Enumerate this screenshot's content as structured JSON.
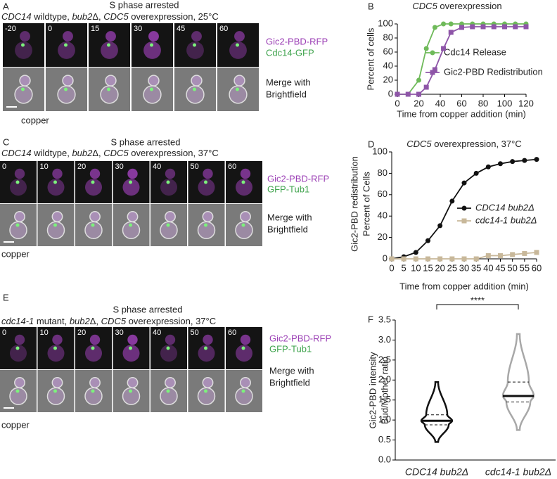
{
  "panels": [
    {
      "letter": "A",
      "title": "S phase arrested",
      "subtitle": [
        {
          "text": "CDC14",
          "italic": true
        },
        {
          "text": " wildtype, "
        },
        {
          "text": "bub2",
          "italic": true
        },
        {
          "text": "Δ, "
        },
        {
          "text": "CDC5",
          "italic": true
        },
        {
          "text": " overexpression, 25°C"
        }
      ],
      "times": [
        -20,
        0,
        15,
        30,
        45,
        60
      ],
      "channels": [
        {
          "text": "Gic2-PBD-RFP",
          "color": "#9b3fb5"
        },
        {
          "text": "Cdc14-GFP",
          "color": "#3fa34d"
        }
      ],
      "merge": [
        "Merge with",
        "Brightfield"
      ],
      "treatment": "copper"
    },
    {
      "letter": "C",
      "title": "S phase arrested",
      "subtitle": [
        {
          "text": "CDC14",
          "italic": true
        },
        {
          "text": " wildtype, "
        },
        {
          "text": "bub2",
          "italic": true
        },
        {
          "text": "Δ, "
        },
        {
          "text": "CDC5",
          "italic": true
        },
        {
          "text": " overexpression, 37°C"
        }
      ],
      "times": [
        0,
        10,
        20,
        30,
        40,
        50,
        60
      ],
      "channels": [
        {
          "text": "Gic2-PBD-RFP",
          "color": "#9b3fb5"
        },
        {
          "text": "GFP-Tub1",
          "color": "#3fa34d"
        }
      ],
      "merge": [
        "Merge with",
        "Brightfield"
      ],
      "treatment": "copper"
    },
    {
      "letter": "E",
      "title": "S phase arrested",
      "subtitle": [
        {
          "text": "cdc14-1",
          "italic": true
        },
        {
          "text": " mutant, "
        },
        {
          "text": "bub2",
          "italic": true
        },
        {
          "text": "Δ, "
        },
        {
          "text": "CDC5",
          "italic": true
        },
        {
          "text": " overexpression, 37°C"
        }
      ],
      "times": [
        0,
        10,
        20,
        30,
        40,
        50,
        60
      ],
      "channels": [
        {
          "text": "Gic2-PBD-RFP",
          "color": "#9b3fb5"
        },
        {
          "text": "GFP-Tub1",
          "color": "#3fa34d"
        }
      ],
      "merge": [
        "Merge with",
        "Brightfield"
      ],
      "treatment": "copper"
    }
  ],
  "chart_data": [
    {
      "type": "line",
      "panel_label": "B",
      "title": [
        {
          "text": "CDC5",
          "italic": true
        },
        {
          "text": " overexpression"
        }
      ],
      "x_label": "Time from copper addition (min)",
      "y_label": [
        "Percent of cells"
      ],
      "x": [
        0,
        10,
        20,
        27,
        35,
        43,
        50,
        60,
        70,
        80,
        90,
        100,
        110,
        120
      ],
      "xlim": [
        0,
        120
      ],
      "xticks": [
        0,
        20,
        40,
        60,
        80,
        100,
        120
      ],
      "ylim": [
        0,
        100
      ],
      "yticks": [
        0,
        20,
        40,
        60,
        80,
        100
      ],
      "series": [
        {
          "name": "Cdc14 Release",
          "color": "#6fba5a",
          "marker": "circle",
          "values": [
            0,
            0,
            20,
            65,
            95,
            100,
            100,
            100,
            100,
            100,
            100,
            100,
            100,
            100
          ]
        },
        {
          "name": "Gic2-PBD Redistribution",
          "color": "#8e55a8",
          "marker": "square",
          "values": [
            0,
            0,
            0,
            10,
            35,
            65,
            88,
            95,
            96,
            96,
            96,
            96,
            96,
            96
          ]
        }
      ]
    },
    {
      "type": "line",
      "panel_label": "D",
      "title": [
        {
          "text": "CDC5",
          "italic": true
        },
        {
          "text": " overexpression, 37°C"
        }
      ],
      "x_label": "Time from copper addition (min)",
      "y_label": [
        "Gic2-PBD redistribution",
        "Percent of Cells"
      ],
      "x": [
        0,
        5,
        10,
        15,
        20,
        25,
        30,
        35,
        40,
        45,
        50,
        55,
        60
      ],
      "xlim": [
        0,
        60
      ],
      "xticks": [
        0,
        5,
        10,
        15,
        20,
        25,
        30,
        35,
        40,
        45,
        50,
        55,
        60
      ],
      "ylim": [
        0,
        100
      ],
      "yticks": [
        0,
        20,
        40,
        60,
        80,
        100
      ],
      "series": [
        {
          "name": "CDC14 bub2Δ",
          "color": "#111111",
          "marker": "circle",
          "values": [
            0,
            2,
            6,
            17,
            31,
            54,
            71,
            80,
            86,
            89,
            91,
            92,
            93
          ]
        },
        {
          "name": "cdc14-1 bub2Δ",
          "color": "#c8b89a",
          "marker": "square",
          "values": [
            0,
            0,
            0,
            0,
            0,
            0,
            0,
            0,
            3,
            3,
            4,
            5,
            6
          ]
        }
      ]
    },
    {
      "type": "violin",
      "panel_label": "F",
      "y_label": [
        "Gic2-PBD intensity",
        "Bud/Mother ratio"
      ],
      "categories": [
        "CDC14 bub2Δ",
        "cdc14-1 bub2Δ"
      ],
      "colors": [
        "#111111",
        "#a8a8a8"
      ],
      "stats": [
        {
          "min": 0.45,
          "q1": 0.88,
          "median": 0.98,
          "q3": 1.13,
          "max": 1.95
        },
        {
          "min": 0.75,
          "q1": 1.45,
          "median": 1.6,
          "q3": 1.95,
          "max": 3.15
        }
      ],
      "ylim": [
        0,
        3.5
      ],
      "yticks": [
        {
          "value": 0,
          "label": "0.0"
        },
        0.5,
        {
          "value": 1,
          "label": "1.0"
        },
        1.5,
        {
          "value": 2,
          "label": "2.0"
        },
        2.5,
        {
          "value": 3,
          "label": "3.0"
        },
        3.5
      ],
      "annotation": "****"
    }
  ]
}
